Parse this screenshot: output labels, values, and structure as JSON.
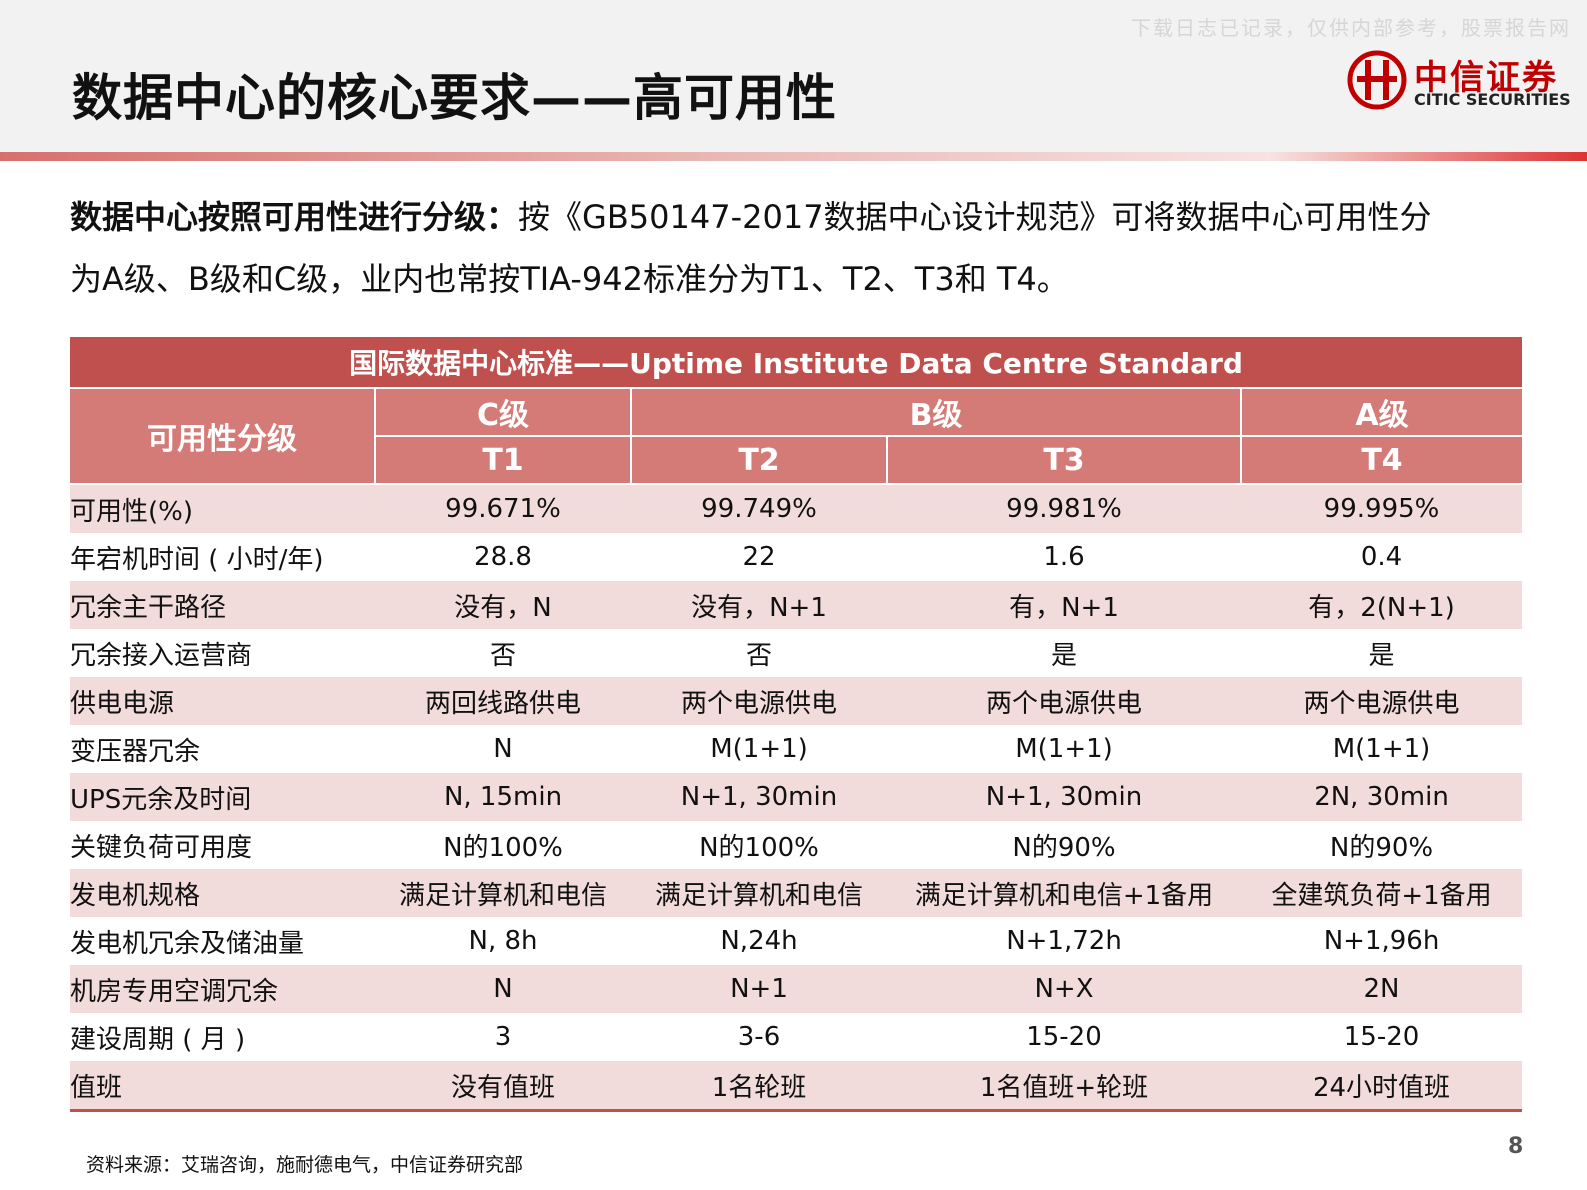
{
  "header": {
    "title": "数据中心的核心要求——高可用性",
    "watermark": "下载日志已记录，仅供内部参考，股票报告网",
    "logo_cn": "中信证券",
    "logo_en": "CITIC SECURITIES"
  },
  "intro": {
    "lead": "数据中心按照可用性进行分级：",
    "text": "按《GB50147-2017数据中心设计规范》可将数据中心可用性分为A级、B级和C级，业内也常按TIA-942标准分为T1、T2、T3和 T4。"
  },
  "table": {
    "title": "国际数据中心标准——Uptime Institute Data Centre Standard",
    "group_label": "可用性分级",
    "levels": [
      "C级",
      "B级",
      "A级"
    ],
    "tiers": [
      "T1",
      "T2",
      "T3",
      "T4"
    ],
    "rows": [
      [
        "可用性(%)",
        "99.671%",
        "99.749%",
        "99.981%",
        "99.995%"
      ],
      [
        "年宕机时间 ( 小时/年)",
        "28.8",
        "22",
        "1.6",
        "0.4"
      ],
      [
        "冗余主干路径",
        "没有，N",
        "没有，N+1",
        "有，N+1",
        "有，2(N+1)"
      ],
      [
        "冗余接入运营商",
        "否",
        "否",
        "是",
        "是"
      ],
      [
        "供电电源",
        "两回线路供电",
        "两个电源供电",
        "两个电源供电",
        "两个电源供电"
      ],
      [
        "变压器冗余",
        "N",
        "M(1+1)",
        "M(1+1)",
        "M(1+1)"
      ],
      [
        "UPS元余及时间",
        "N, 15min",
        "N+1, 30min",
        "N+1, 30min",
        "2N, 30min"
      ],
      [
        "关键负荷可用度",
        "N的100%",
        "N的100%",
        "N的90%",
        "N的90%"
      ],
      [
        "发电机规格",
        "满足计算机和电信",
        "满足计算机和电信",
        "满足计算机和电信+1备用",
        "全建筑负荷+1备用"
      ],
      [
        "发电机冗余及储油量",
        "N, 8h",
        "N,24h",
        "N+1,72h",
        "N+1,96h"
      ],
      [
        "机房专用空调冗余",
        "N",
        "N+1",
        "N+X",
        "2N"
      ],
      [
        "建设周期 ( 月 )",
        "3",
        "3-6",
        "15-20",
        "15-20"
      ],
      [
        "值班",
        "没有值班",
        "1名轮班",
        "1名值班+轮班",
        "24小时值班"
      ]
    ]
  },
  "footer": {
    "source": "资料来源：艾瑞咨询，施耐德电气，中信证券研究部",
    "page_number": "8"
  }
}
